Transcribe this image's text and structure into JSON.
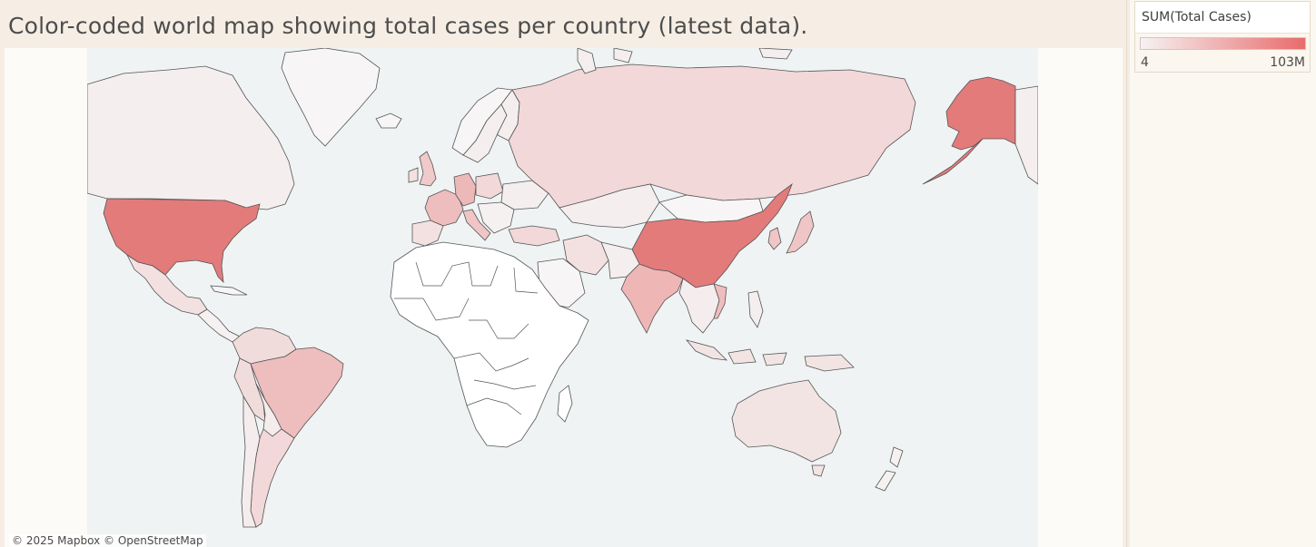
{
  "title": "Color-coded world map showing total cases per country (latest data).",
  "map": {
    "attribution": "© 2025 Mapbox © OpenStreetMap",
    "ocean_color": "#eff3f3",
    "border_color": "#555555",
    "countries": [
      {
        "name": "United States",
        "level": 0.9
      },
      {
        "name": "Alaska",
        "level": 0.9
      },
      {
        "name": "China",
        "level": 0.92
      },
      {
        "name": "India",
        "level": 0.45
      },
      {
        "name": "Brazil",
        "level": 0.38
      },
      {
        "name": "Russia",
        "level": 0.22
      },
      {
        "name": "Canada",
        "level": 0.05
      },
      {
        "name": "Mexico",
        "level": 0.12
      },
      {
        "name": "France",
        "level": 0.35
      },
      {
        "name": "Germany",
        "level": 0.4
      },
      {
        "name": "United Kingdom",
        "level": 0.3
      },
      {
        "name": "Italy",
        "level": 0.3
      },
      {
        "name": "Spain",
        "level": 0.22
      },
      {
        "name": "Japan",
        "level": 0.32
      },
      {
        "name": "South Korea",
        "level": 0.3
      },
      {
        "name": "Australia",
        "level": 0.15
      },
      {
        "name": "Argentina",
        "level": 0.2
      },
      {
        "name": "Turkey",
        "level": 0.2
      },
      {
        "name": "Iran",
        "level": 0.15
      },
      {
        "name": "Vietnam",
        "level": 0.35
      },
      {
        "name": "Indonesia",
        "level": 0.15
      },
      {
        "name": "Kazakhstan",
        "level": 0.05
      }
    ]
  },
  "legend": {
    "title": "SUM(Total Cases)",
    "min_label": "4",
    "max_label": "103M",
    "color_low": "#f6f2f2",
    "color_high": "#e96b6b"
  }
}
